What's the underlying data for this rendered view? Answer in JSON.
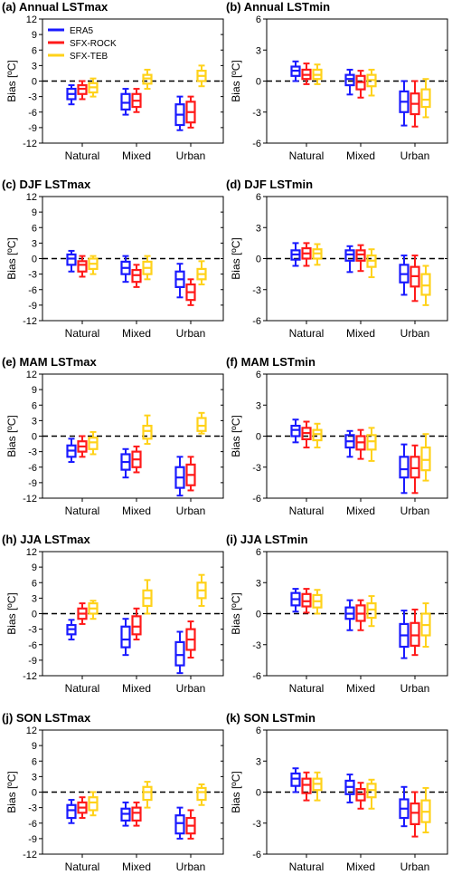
{
  "figure": {
    "colors": {
      "ERA5": "#1a1aff",
      "SFX-ROCK": "#ff1a1a",
      "SFX-TEB": "#ffd21a"
    }
  },
  "chart_data": [
    {
      "type": "boxplot",
      "title": "(a) Annual LSTmax",
      "ylabel": "Bias [ºC]",
      "ylim": [
        -12,
        12
      ],
      "yticks": [
        "12",
        "9",
        "6",
        "3",
        "0",
        "-3",
        "-6",
        "-9",
        "-12"
      ],
      "ytick_values": [
        12,
        9,
        6,
        3,
        0,
        -3,
        -6,
        -9,
        -12
      ],
      "categories": [
        "Natural",
        "Mixed",
        "Urban"
      ],
      "legend": {
        "position": "top-left",
        "entries": [
          "ERA5",
          "SFX-ROCK",
          "SFX-TEB"
        ]
      },
      "series": [
        {
          "name": "ERA5",
          "boxes": [
            [
              -4.5,
              -3.5,
              -2.5,
              -1.5,
              -0.8
            ],
            [
              -6.5,
              -5.5,
              -4.2,
              -2.5,
              -1.5
            ],
            [
              -9.5,
              -8.5,
              -6.5,
              -4.5,
              -3
            ]
          ]
        },
        {
          "name": "SFX-ROCK",
          "boxes": [
            [
              -3.5,
              -2.5,
              -1.5,
              -0.8,
              0
            ],
            [
              -6,
              -5,
              -3.8,
              -2.5,
              -1.5
            ],
            [
              -9,
              -8,
              -6,
              -4,
              -3
            ]
          ]
        },
        {
          "name": "SFX-TEB",
          "boxes": [
            [
              -3,
              -2.2,
              -1.2,
              -0.4,
              0.5
            ],
            [
              -1.5,
              -0.5,
              0.5,
              1.2,
              2.2
            ],
            [
              -1,
              0,
              1,
              2,
              3
            ]
          ]
        }
      ]
    },
    {
      "type": "boxplot",
      "title": "(b) Annual LSTmin",
      "ylabel": "Bias [ºC]",
      "ylim": [
        -6,
        6
      ],
      "yticks": [
        "6",
        "3",
        "0",
        "-3",
        "-6"
      ],
      "ytick_values": [
        6,
        3,
        0,
        -3,
        -6
      ],
      "categories": [
        "Natural",
        "Mixed",
        "Urban"
      ],
      "series": [
        {
          "name": "ERA5",
          "boxes": [
            [
              0,
              0.5,
              1,
              1.4,
              1.9
            ],
            [
              -1.3,
              -0.4,
              0.2,
              0.6,
              1.1
            ],
            [
              -4.3,
              -3,
              -2,
              -1,
              0
            ]
          ]
        },
        {
          "name": "SFX-ROCK",
          "boxes": [
            [
              -0.3,
              0.2,
              0.6,
              1.1,
              1.7
            ],
            [
              -1.6,
              -0.8,
              -0.1,
              0.5,
              1
            ]
          ],
          "_": 0
        },
        {
          "name": "SFX-TEB",
          "boxes": [
            [
              -0.3,
              0.2,
              0.6,
              1.1,
              1.6
            ],
            [
              -1.4,
              -0.5,
              0.1,
              0.6,
              1.1
            ],
            [
              -3.5,
              -2.5,
              -1.8,
              -0.8,
              0.2
            ]
          ]
        }
      ],
      "extra_urban_rock": [
        -4.4,
        -3.2,
        -2.2,
        -1.2,
        0
      ]
    },
    {
      "type": "boxplot",
      "title": "(c) DJF LSTmax",
      "ylabel": "Bias [ºC]",
      "ylim": [
        -12,
        12
      ],
      "yticks": [
        "12",
        "9",
        "6",
        "3",
        "0",
        "-3",
        "-6",
        "-9",
        "-12"
      ],
      "ytick_values": [
        12,
        9,
        6,
        3,
        0,
        -3,
        -6,
        -9,
        -12
      ],
      "categories": [
        "Natural",
        "Mixed",
        "Urban"
      ],
      "series": [
        {
          "name": "ERA5",
          "boxes": [
            [
              -2.5,
              -1.2,
              0,
              0.8,
              1.5
            ],
            [
              -4.5,
              -3,
              -1.8,
              -0.6,
              0.5
            ],
            [
              -7.5,
              -5.5,
              -4,
              -2.5,
              -1
            ]
          ]
        },
        {
          "name": "SFX-ROCK",
          "boxes": [
            [
              -3.5,
              -2.5,
              -1.2,
              -0.5,
              0.5
            ],
            [
              -5.5,
              -4.5,
              -3.2,
              -2.2,
              -1.2
            ],
            [
              -9,
              -8,
              -6.5,
              -5,
              -4
            ]
          ]
        },
        {
          "name": "SFX-TEB",
          "boxes": [
            [
              -3,
              -2,
              -1,
              0,
              0.5
            ],
            [
              -4,
              -3,
              -1.8,
              -0.6,
              0.5
            ],
            [
              -5,
              -4,
              -3,
              -2,
              -0.5
            ]
          ]
        }
      ]
    },
    {
      "type": "boxplot",
      "title": "(d) DJF LSTmin",
      "ylabel": "Bias [ºC]",
      "ylim": [
        -6,
        6
      ],
      "yticks": [
        "6",
        "3",
        "0",
        "-3",
        "-6"
      ],
      "ytick_values": [
        6,
        3,
        0,
        -3,
        -6
      ],
      "categories": [
        "Natural",
        "Mixed",
        "Urban"
      ],
      "series": [
        {
          "name": "ERA5",
          "boxes": [
            [
              -0.7,
              -0.1,
              0.4,
              0.8,
              1.5
            ],
            [
              -1.3,
              -0.2,
              0.4,
              0.8,
              1.2
            ],
            [
              -3.5,
              -2.3,
              -1.5,
              -0.6,
              0.3
            ]
          ]
        },
        {
          "name": "SFX-ROCK",
          "boxes": [
            [
              -0.7,
              0,
              0.5,
              1,
              1.5
            ],
            [
              -1.2,
              -0.2,
              0.4,
              0.8,
              1.3
            ],
            [
              -4.1,
              -2.7,
              -1.7,
              -0.8,
              0.3
            ]
          ]
        },
        {
          "name": "SFX-TEB",
          "boxes": [
            [
              -0.6,
              0,
              0.5,
              0.9,
              1.4
            ],
            [
              -1.8,
              -0.8,
              -0.2,
              0.3,
              0.9
            ],
            [
              -4.5,
              -3.5,
              -2.6,
              -1.5,
              -0.7
            ]
          ]
        }
      ]
    },
    {
      "type": "boxplot",
      "title": "(e) MAM LSTmax",
      "ylabel": "Bias [ºC]",
      "ylim": [
        -12,
        12
      ],
      "yticks": [
        "12",
        "9",
        "6",
        "3",
        "0",
        "-3",
        "-6",
        "-9",
        "-12"
      ],
      "ytick_values": [
        12,
        9,
        6,
        3,
        0,
        -3,
        -6,
        -9,
        -12
      ],
      "categories": [
        "Natural",
        "Mixed",
        "Urban"
      ],
      "series": [
        {
          "name": "ERA5",
          "boxes": [
            [
              -5,
              -4,
              -2.8,
              -1.8,
              -0.5
            ],
            [
              -8,
              -6.5,
              -5,
              -3.5,
              -2.5
            ],
            [
              -11.5,
              -10,
              -8,
              -6,
              -4
            ]
          ]
        },
        {
          "name": "SFX-ROCK",
          "boxes": [
            [
              -4,
              -3,
              -2,
              -1,
              0
            ],
            [
              -7,
              -6,
              -4.5,
              -3,
              -2
            ],
            [
              -10.5,
              -9.5,
              -7.5,
              -5.5,
              -4
            ]
          ]
        },
        {
          "name": "SFX-TEB",
          "boxes": [
            [
              -3.5,
              -2.5,
              -1.2,
              -0.3,
              0.8
            ],
            [
              -1.5,
              -0.5,
              1,
              2,
              4
            ],
            [
              0.5,
              1,
              2,
              3.5,
              4.5
            ]
          ]
        }
      ]
    },
    {
      "type": "boxplot",
      "title": "(f) MAM LSTmin",
      "ylabel": "Bias [ºC]",
      "ylim": [
        -6,
        6
      ],
      "yticks": [
        "6",
        "3",
        "0",
        "-3",
        "-6"
      ],
      "ytick_values": [
        6,
        3,
        0,
        -3,
        -6
      ],
      "categories": [
        "Natural",
        "Mixed",
        "Urban"
      ],
      "series": [
        {
          "name": "ERA5",
          "boxes": [
            [
              -0.6,
              0,
              0.6,
              1,
              1.6
            ],
            [
              -2,
              -1.1,
              -0.5,
              0.1,
              0.5
            ],
            [
              -5.5,
              -4,
              -3.2,
              -2,
              -0.8
            ]
          ]
        },
        {
          "name": "SFX-ROCK",
          "boxes": [
            [
              -1.1,
              -0.3,
              0.3,
              0.8,
              1.4
            ],
            [
              -2.2,
              -1.3,
              -0.6,
              0,
              0.6
            ],
            [
              -5.5,
              -4,
              -3.1,
              -2,
              -0.9
            ]
          ]
        },
        {
          "name": "SFX-TEB",
          "boxes": [
            [
              -1.1,
              -0.4,
              0.2,
              0.6,
              1.2
            ],
            [
              -2.4,
              -1.3,
              -0.5,
              0.1,
              0.8
            ],
            [
              -4.3,
              -3.3,
              -2.3,
              -1.1,
              0.2
            ]
          ]
        }
      ]
    },
    {
      "type": "boxplot",
      "title": "(h) JJA LSTmax",
      "ylabel": "Bias [ºC]",
      "ylim": [
        -12,
        12
      ],
      "yticks": [
        "12",
        "9",
        "6",
        "3",
        "0",
        "-3",
        "-6",
        "-9",
        "-12"
      ],
      "ytick_values": [
        12,
        9,
        6,
        3,
        0,
        -3,
        -6,
        -9,
        -12
      ],
      "categories": [
        "Natural",
        "Mixed",
        "Urban"
      ],
      "series": [
        {
          "name": "ERA5",
          "boxes": [
            [
              -5,
              -4,
              -3,
              -2.2,
              -1.2
            ],
            [
              -8,
              -6.5,
              -5,
              -2.5,
              -1
            ],
            [
              -11.5,
              -10,
              -8,
              -5.5,
              -3.5
            ]
          ]
        },
        {
          "name": "SFX-ROCK",
          "boxes": [
            [
              -2,
              -1,
              0,
              1,
              2
            ],
            [
              -5,
              -4,
              -2.5,
              -0.5,
              1
            ],
            [
              -8.5,
              -7,
              -5,
              -3,
              -1.5
            ]
          ]
        },
        {
          "name": "SFX-TEB",
          "boxes": [
            [
              -1,
              0,
              1,
              2,
              2.5
            ],
            [
              0,
              1.5,
              3,
              4.5,
              6.5
            ],
            [
              1.5,
              3,
              4.5,
              6,
              7.5
            ]
          ]
        }
      ]
    },
    {
      "type": "boxplot",
      "title": "(i) JJA LSTmin",
      "ylabel": "Bias [ºC]",
      "ylim": [
        -6,
        6
      ],
      "yticks": [
        "6",
        "3",
        "0",
        "-3",
        "-6"
      ],
      "ytick_values": [
        6,
        3,
        0,
        -3,
        -6
      ],
      "categories": [
        "Natural",
        "Mixed",
        "Urban"
      ],
      "series": [
        {
          "name": "ERA5",
          "boxes": [
            [
              0.2,
              0.8,
              1.4,
              2,
              2.4
            ],
            [
              -1.6,
              -0.5,
              0,
              0.6,
              1.3
            ],
            [
              -4.3,
              -3.2,
              -2.1,
              -1,
              0.3
            ]
          ]
        },
        {
          "name": "SFX-ROCK",
          "boxes": [
            [
              0.1,
              0.7,
              1.2,
              1.9,
              2.4
            ],
            [
              -1.6,
              -0.7,
              0,
              0.8,
              1.3
            ],
            [
              -4,
              -3.1,
              -2.1,
              -0.9,
              0.4
            ]
          ]
        },
        {
          "name": "SFX-TEB",
          "boxes": [
            [
              0,
              0.6,
              1.2,
              1.8,
              2.3
            ],
            [
              -1.2,
              -0.4,
              0.4,
              1,
              1.7
            ],
            [
              -3.2,
              -2.1,
              -1.1,
              0,
              1
            ]
          ]
        }
      ]
    },
    {
      "type": "boxplot",
      "title": "(j) SON LSTmax",
      "ylabel": "Bias [ºC]",
      "ylim": [
        -12,
        12
      ],
      "yticks": [
        "12",
        "9",
        "6",
        "3",
        "0",
        "-3",
        "-6",
        "-9",
        "-12"
      ],
      "ytick_values": [
        12,
        9,
        6,
        3,
        0,
        -3,
        -6,
        -9,
        -12
      ],
      "categories": [
        "Natural",
        "Mixed",
        "Urban"
      ],
      "series": [
        {
          "name": "ERA5",
          "boxes": [
            [
              -6,
              -5,
              -3.5,
              -2.5,
              -1.5
            ],
            [
              -6.5,
              -5.5,
              -4.2,
              -3.2,
              -2
            ],
            [
              -9,
              -8,
              -6,
              -4.5,
              -3
            ]
          ]
        },
        {
          "name": "SFX-ROCK",
          "boxes": [
            [
              -5,
              -4,
              -3,
              -2,
              -1
            ],
            [
              -6.5,
              -5.5,
              -4,
              -3,
              -2
            ],
            [
              -9,
              -8,
              -6.5,
              -5,
              -3.5
            ]
          ]
        },
        {
          "name": "SFX-TEB",
          "boxes": [
            [
              -4.5,
              -3.5,
              -2,
              -1,
              0
            ],
            [
              -3,
              -1.5,
              0,
              1,
              2
            ],
            [
              -2.5,
              -1.5,
              0,
              0.8,
              1.5
            ]
          ]
        }
      ]
    },
    {
      "type": "boxplot",
      "title": "(k) SON LSTmin",
      "ylabel": "Bias [ºC]",
      "ylim": [
        -6,
        6
      ],
      "yticks": [
        "6",
        "3",
        "0",
        "-3",
        "-6"
      ],
      "ytick_values": [
        6,
        3,
        0,
        -3,
        -6
      ],
      "categories": [
        "Natural",
        "Mixed",
        "Urban"
      ],
      "series": [
        {
          "name": "ERA5",
          "boxes": [
            [
              0,
              0.6,
              1.3,
              1.8,
              2.3
            ],
            [
              -1,
              -0.2,
              0.5,
              1.1,
              1.7
            ],
            [
              -3.3,
              -2.5,
              -1.6,
              -0.7,
              0.5
            ]
          ]
        },
        {
          "name": "SFX-ROCK",
          "boxes": [
            [
              -0.8,
              -0.1,
              0.7,
              1.3,
              1.9
            ],
            [
              -1.6,
              -0.8,
              -0.2,
              0.3,
              0.9
            ],
            [
              -4.3,
              -3.1,
              -2,
              -1.1,
              0
            ]
          ]
        },
        {
          "name": "SFX-TEB",
          "boxes": [
            [
              -0.8,
              0.2,
              0.8,
              1.3,
              1.9
            ],
            [
              -1.6,
              -0.5,
              0.2,
              0.8,
              1.2
            ],
            [
              -3.9,
              -2.9,
              -1.9,
              -0.8,
              0.4
            ]
          ]
        }
      ]
    }
  ]
}
